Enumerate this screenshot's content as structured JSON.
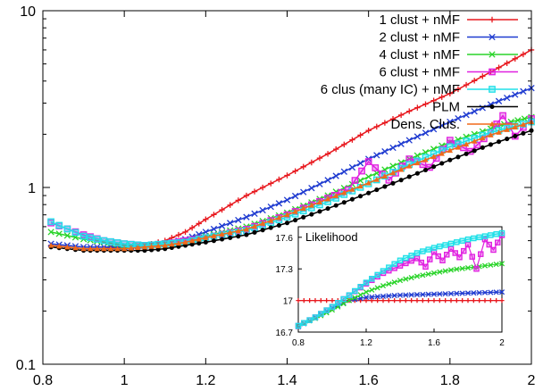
{
  "chart_data": [
    {
      "type": "line",
      "yscale": "log",
      "xlim": [
        0.8,
        2.0
      ],
      "ylim": [
        0.1,
        10
      ],
      "x_ticks": [
        "0.8",
        "1",
        "1.2",
        "1.4",
        "1.6",
        "1.8",
        "2"
      ],
      "y_ticks": [
        "0.1",
        "1",
        "10"
      ],
      "legend_position": "top-right",
      "series": [
        {
          "name": "1 clust + nMF",
          "color": "#e8191f",
          "marker": "plus",
          "x": [
            0.82,
            0.9,
            0.95,
            1.0,
            1.05,
            1.1,
            1.15,
            1.2,
            1.3,
            1.4,
            1.5,
            1.6,
            1.7,
            1.8,
            1.9,
            2.0
          ],
          "y": [
            0.47,
            0.45,
            0.45,
            0.46,
            0.47,
            0.5,
            0.56,
            0.66,
            0.9,
            1.17,
            1.55,
            2.1,
            2.7,
            3.4,
            4.5,
            6.0
          ]
        },
        {
          "name": "2 clust + nMF",
          "color": "#1f3bd0",
          "marker": "x",
          "x": [
            0.82,
            0.9,
            0.95,
            1.0,
            1.05,
            1.1,
            1.15,
            1.2,
            1.3,
            1.4,
            1.5,
            1.6,
            1.7,
            1.8,
            1.9,
            2.0
          ],
          "y": [
            0.48,
            0.46,
            0.46,
            0.46,
            0.47,
            0.48,
            0.51,
            0.56,
            0.68,
            0.85,
            1.1,
            1.45,
            1.85,
            2.35,
            2.95,
            3.65
          ]
        },
        {
          "name": "4 clust + nMF",
          "color": "#2ad42a",
          "marker": "x",
          "x": [
            0.82,
            0.9,
            0.95,
            1.0,
            1.05,
            1.1,
            1.15,
            1.2,
            1.3,
            1.4,
            1.5,
            1.6,
            1.7,
            1.8,
            1.9,
            1.95,
            2.0
          ],
          "y": [
            0.56,
            0.51,
            0.49,
            0.47,
            0.47,
            0.48,
            0.5,
            0.53,
            0.6,
            0.72,
            0.9,
            1.15,
            1.45,
            1.8,
            2.15,
            2.35,
            2.5
          ]
        },
        {
          "name": "6 clust + nMF",
          "color": "#e020e0",
          "marker": "square",
          "x": [
            0.82,
            0.9,
            0.95,
            1.0,
            1.05,
            1.1,
            1.15,
            1.2,
            1.3,
            1.4,
            1.5,
            1.55,
            1.6,
            1.65,
            1.7,
            1.75,
            1.8,
            1.85,
            1.9,
            1.93,
            1.96,
            2.0
          ],
          "y": [
            0.63,
            0.54,
            0.5,
            0.48,
            0.47,
            0.48,
            0.5,
            0.52,
            0.58,
            0.7,
            0.87,
            0.97,
            1.4,
            1.1,
            1.45,
            1.3,
            1.85,
            1.6,
            2.05,
            2.55,
            1.95,
            2.45
          ]
        },
        {
          "name": "6 clus (many IC) + nMF",
          "color": "#20e0e8",
          "marker": "square",
          "x": [
            0.82,
            0.9,
            0.95,
            1.0,
            1.05,
            1.1,
            1.15,
            1.2,
            1.3,
            1.4,
            1.5,
            1.6,
            1.7,
            1.8,
            1.9,
            2.0
          ],
          "y": [
            0.64,
            0.53,
            0.5,
            0.48,
            0.47,
            0.48,
            0.49,
            0.52,
            0.57,
            0.68,
            0.83,
            1.05,
            1.35,
            1.7,
            2.05,
            2.35
          ]
        },
        {
          "name": "PLM",
          "color": "#000000",
          "marker": "dot",
          "x": [
            0.82,
            0.9,
            0.95,
            1.0,
            1.05,
            1.1,
            1.15,
            1.2,
            1.3,
            1.4,
            1.5,
            1.6,
            1.7,
            1.8,
            1.9,
            2.0
          ],
          "y": [
            0.46,
            0.44,
            0.44,
            0.44,
            0.44,
            0.45,
            0.47,
            0.49,
            0.54,
            0.63,
            0.76,
            0.93,
            1.15,
            1.43,
            1.75,
            2.1
          ]
        },
        {
          "name": "Dens. Clus.",
          "color": "#f06a1a",
          "marker": "triangle",
          "x": [
            0.82,
            0.9,
            0.95,
            1.0,
            1.05,
            1.1,
            1.15,
            1.2,
            1.3,
            1.4,
            1.5,
            1.6,
            1.7,
            1.8,
            1.9,
            2.0
          ],
          "y": [
            0.47,
            0.45,
            0.45,
            0.45,
            0.46,
            0.47,
            0.49,
            0.52,
            0.58,
            0.7,
            0.86,
            1.06,
            1.32,
            1.62,
            1.98,
            2.35
          ]
        }
      ]
    },
    {
      "type": "line",
      "title": "Likelihood",
      "xlim": [
        0.8,
        2.0
      ],
      "ylim": [
        16.7,
        17.7
      ],
      "x_ticks": [
        "0.8",
        "1.2",
        "1.6",
        "2"
      ],
      "y_ticks": [
        "16.7",
        "17",
        "17.3",
        "17.6"
      ],
      "series": [
        {
          "color": "#e8191f",
          "marker": "plus",
          "x": [
            0.8,
            1.0,
            1.2,
            1.4,
            1.6,
            1.8,
            2.0
          ],
          "y": [
            17.0,
            17.0,
            17.0,
            17.0,
            17.0,
            17.0,
            17.0
          ]
        },
        {
          "color": "#1f3bd0",
          "marker": "x",
          "x": [
            0.8,
            0.9,
            1.0,
            1.1,
            1.2,
            1.3,
            1.4,
            1.6,
            1.8,
            2.0
          ],
          "y": [
            16.75,
            16.84,
            16.93,
            17.0,
            17.03,
            17.04,
            17.05,
            17.06,
            17.07,
            17.08
          ]
        },
        {
          "color": "#2ad42a",
          "marker": "x",
          "x": [
            0.8,
            0.9,
            1.0,
            1.1,
            1.2,
            1.3,
            1.4,
            1.5,
            1.6,
            1.7,
            1.8,
            1.9,
            2.0
          ],
          "y": [
            16.76,
            16.83,
            16.91,
            17.0,
            17.08,
            17.14,
            17.19,
            17.23,
            17.26,
            17.29,
            17.31,
            17.33,
            17.35
          ]
        },
        {
          "color": "#e020e0",
          "marker": "square",
          "x": [
            0.8,
            0.9,
            1.0,
            1.1,
            1.2,
            1.3,
            1.4,
            1.5,
            1.55,
            1.6,
            1.65,
            1.7,
            1.75,
            1.8,
            1.85,
            1.9,
            1.95,
            2.0
          ],
          "y": [
            16.76,
            16.84,
            16.94,
            17.05,
            17.16,
            17.26,
            17.33,
            17.4,
            17.32,
            17.46,
            17.38,
            17.49,
            17.41,
            17.53,
            17.3,
            17.58,
            17.48,
            17.62
          ]
        },
        {
          "color": "#20e0e8",
          "marker": "square",
          "x": [
            0.8,
            0.9,
            1.0,
            1.1,
            1.2,
            1.3,
            1.4,
            1.5,
            1.6,
            1.7,
            1.8,
            1.9,
            2.0
          ],
          "y": [
            16.76,
            16.84,
            16.94,
            17.05,
            17.17,
            17.28,
            17.38,
            17.45,
            17.5,
            17.54,
            17.58,
            17.61,
            17.64
          ]
        }
      ]
    }
  ]
}
